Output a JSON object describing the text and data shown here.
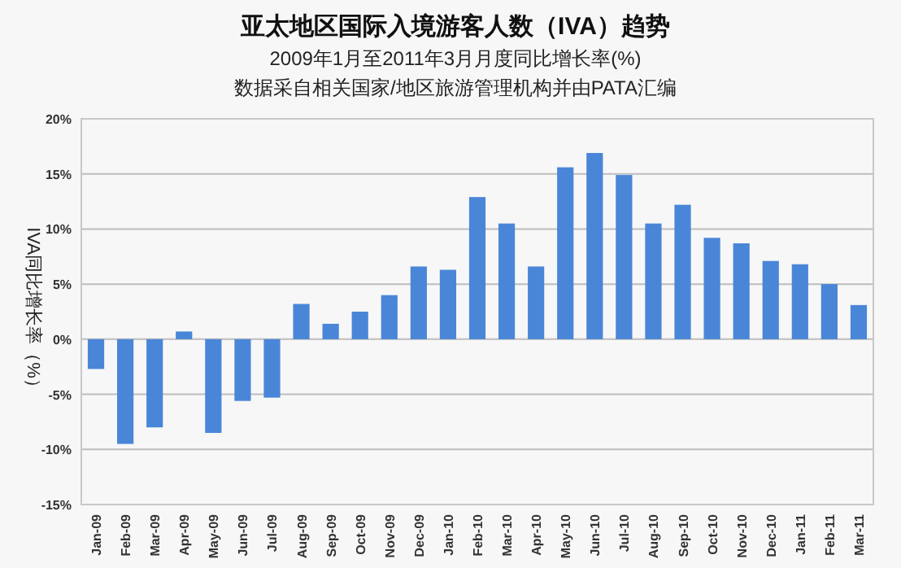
{
  "chart_data": {
    "type": "bar",
    "title": "亚太地区国际入境游客人数（IVA）趋势",
    "subtitle": "2009年1月至2011年3月月度同比增长率(%)",
    "annotations": [
      "数据采自相关国家/地区旅游管理机构并由PATA汇编"
    ],
    "ylabel": "IVA同比增长率（%）",
    "categories": [
      "Jan-09",
      "Feb-09",
      "Mar-09",
      "Apr-09",
      "May-09",
      "Jun-09",
      "Jul-09",
      "Aug-09",
      "Sep-09",
      "Oct-09",
      "Nov-09",
      "Dec-09",
      "Jan-10",
      "Feb-10",
      "Mar-10",
      "Apr-10",
      "May-10",
      "Jun-10",
      "Jul-10",
      "Aug-10",
      "Sep-10",
      "Oct-10",
      "Nov-10",
      "Dec-10",
      "Jan-11",
      "Feb-11",
      "Mar-11"
    ],
    "values": [
      -2.7,
      -9.5,
      -8.0,
      0.7,
      -8.5,
      -5.6,
      -5.3,
      3.2,
      1.4,
      2.5,
      4.0,
      6.6,
      6.3,
      12.9,
      10.5,
      6.6,
      15.6,
      16.9,
      14.9,
      10.5,
      12.2,
      9.2,
      8.7,
      7.1,
      6.8,
      5.0,
      3.1
    ],
    "color": "#4a86d8",
    "ylim": [
      -15,
      20
    ],
    "yticks": [
      {
        "value": -15,
        "label": "-15%"
      },
      {
        "value": -10,
        "label": "-10%"
      },
      {
        "value": -5,
        "label": "-5%"
      },
      {
        "value": 0,
        "label": "0%"
      },
      {
        "value": 5,
        "label": "5%"
      },
      {
        "value": 10,
        "label": "10%"
      },
      {
        "value": 15,
        "label": "15%"
      },
      {
        "value": 20,
        "label": "20%"
      }
    ],
    "grid": "y"
  }
}
